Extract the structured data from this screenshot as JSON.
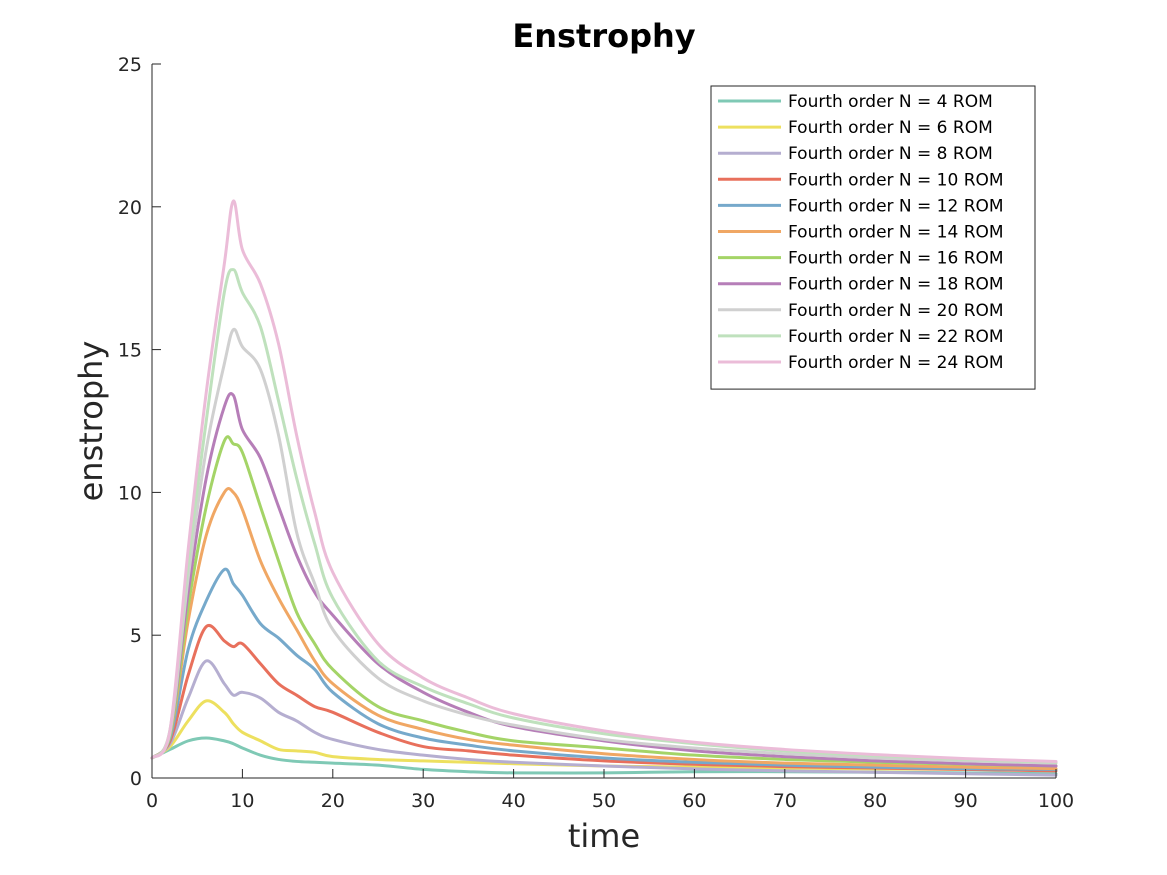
{
  "chart_data": {
    "type": "line",
    "title": "Enstrophy",
    "xlabel": "time",
    "ylabel": "enstrophy",
    "xlim": [
      0,
      100
    ],
    "ylim": [
      0,
      25
    ],
    "xticks": [
      0,
      10,
      20,
      30,
      40,
      50,
      60,
      70,
      80,
      90,
      100
    ],
    "yticks": [
      0,
      5,
      10,
      15,
      20,
      25
    ],
    "grid": false,
    "legend_position": "top-right",
    "x": [
      0,
      2,
      4,
      6,
      8,
      9,
      10,
      12,
      14,
      16,
      18,
      20,
      25,
      30,
      35,
      40,
      50,
      60,
      70,
      80,
      90,
      100
    ],
    "series": [
      {
        "name": "Fourth order N = 4 ROM",
        "color": "#7fc9b5",
        "values": [
          0.7,
          1.0,
          1.3,
          1.4,
          1.3,
          1.2,
          1.05,
          0.8,
          0.65,
          0.58,
          0.55,
          0.52,
          0.45,
          0.3,
          0.22,
          0.18,
          0.18,
          0.22,
          0.22,
          0.2,
          0.18,
          0.15
        ]
      },
      {
        "name": "Fourth order N = 6 ROM",
        "color": "#ede05f",
        "values": [
          0.7,
          1.1,
          2.0,
          2.7,
          2.3,
          1.9,
          1.6,
          1.3,
          1.0,
          0.95,
          0.9,
          0.75,
          0.65,
          0.6,
          0.55,
          0.5,
          0.42,
          0.38,
          0.35,
          0.32,
          0.3,
          0.28
        ]
      },
      {
        "name": "Fourth order N = 8 ROM",
        "color": "#b5aed0",
        "values": [
          0.7,
          1.2,
          2.8,
          4.1,
          3.3,
          2.9,
          3.0,
          2.8,
          2.3,
          2.0,
          1.6,
          1.35,
          1.0,
          0.8,
          0.65,
          0.55,
          0.42,
          0.32,
          0.25,
          0.2,
          0.15,
          0.1
        ]
      },
      {
        "name": "Fourth order N = 10 ROM",
        "color": "#e8705c",
        "values": [
          0.7,
          1.3,
          3.6,
          5.3,
          4.8,
          4.6,
          4.7,
          4.0,
          3.3,
          2.9,
          2.5,
          2.3,
          1.6,
          1.1,
          0.95,
          0.8,
          0.6,
          0.48,
          0.4,
          0.35,
          0.3,
          0.25
        ]
      },
      {
        "name": "Fourth order N = 12 ROM",
        "color": "#76a9cb",
        "values": [
          0.7,
          1.4,
          4.5,
          6.2,
          7.3,
          6.8,
          6.4,
          5.4,
          4.9,
          4.3,
          3.8,
          3.0,
          1.9,
          1.4,
          1.15,
          0.95,
          0.7,
          0.55,
          0.45,
          0.38,
          0.33,
          0.3
        ]
      },
      {
        "name": "Fourth order N = 14 ROM",
        "color": "#f0a764",
        "values": [
          0.7,
          1.5,
          5.5,
          8.5,
          10.0,
          10.0,
          9.4,
          7.6,
          6.3,
          5.2,
          4.1,
          3.3,
          2.2,
          1.7,
          1.35,
          1.15,
          0.85,
          0.65,
          0.52,
          0.45,
          0.38,
          0.33
        ]
      },
      {
        "name": "Fourth order N = 16 ROM",
        "color": "#a4d467",
        "values": [
          0.7,
          1.5,
          6.0,
          9.5,
          11.8,
          11.7,
          11.4,
          9.5,
          7.6,
          5.8,
          4.7,
          3.8,
          2.5,
          2.0,
          1.6,
          1.3,
          1.05,
          0.8,
          0.65,
          0.55,
          0.48,
          0.42
        ]
      },
      {
        "name": "Fourth order N = 18 ROM",
        "color": "#b67eb8",
        "values": [
          0.7,
          1.6,
          6.5,
          10.5,
          13.0,
          13.4,
          12.2,
          11.2,
          9.5,
          7.8,
          6.5,
          5.7,
          4.0,
          3.0,
          2.3,
          1.8,
          1.3,
          0.95,
          0.75,
          0.6,
          0.5,
          0.42
        ]
      },
      {
        "name": "Fourth order N = 20 ROM",
        "color": "#d0d0d0",
        "values": [
          0.7,
          1.6,
          7.0,
          11.5,
          14.5,
          15.7,
          15.1,
          14.3,
          12.0,
          8.6,
          6.8,
          5.2,
          3.5,
          2.7,
          2.2,
          1.85,
          1.35,
          1.05,
          0.85,
          0.7,
          0.6,
          0.52
        ]
      },
      {
        "name": "Fourth order N = 22 ROM",
        "color": "#bfe1bd",
        "values": [
          0.7,
          1.7,
          7.5,
          12.5,
          17.0,
          17.8,
          17.0,
          15.8,
          13.2,
          10.5,
          8.2,
          6.3,
          4.1,
          3.2,
          2.6,
          2.1,
          1.55,
          1.2,
          0.95,
          0.78,
          0.65,
          0.55
        ]
      },
      {
        "name": "Fourth order N = 24 ROM",
        "color": "#ebbcd8",
        "values": [
          0.7,
          1.7,
          8.0,
          13.5,
          18.0,
          20.2,
          18.5,
          17.3,
          15.2,
          12.0,
          9.3,
          7.2,
          4.7,
          3.5,
          2.8,
          2.25,
          1.65,
          1.25,
          1.0,
          0.82,
          0.68,
          0.58
        ]
      }
    ]
  }
}
